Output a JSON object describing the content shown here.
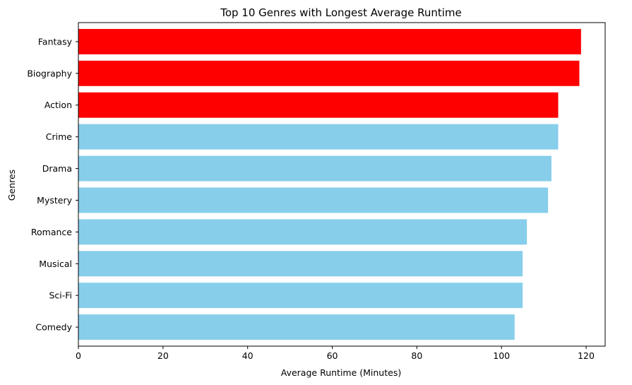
{
  "chart_data": {
    "type": "bar",
    "orientation": "horizontal",
    "title": "Top 10 Genres with Longest Average Runtime",
    "xlabel": "Average Runtime (Minutes)",
    "ylabel": "Genres",
    "categories": [
      "Fantasy",
      "Biography",
      "Action",
      "Crime",
      "Drama",
      "Mystery",
      "Romance",
      "Musical",
      "Sci-Fi",
      "Comedy"
    ],
    "values": [
      118.8,
      118.4,
      113.4,
      113.4,
      111.8,
      111.0,
      106.0,
      105.0,
      105.0,
      103.1
    ],
    "bar_colors": [
      "#ff0000",
      "#ff0000",
      "#ff0000",
      "#87ceeb",
      "#87ceeb",
      "#87ceeb",
      "#87ceeb",
      "#87ceeb",
      "#87ceeb",
      "#87ceeb"
    ],
    "xlim": [
      0,
      124.5
    ],
    "xticks": [
      0,
      20,
      40,
      60,
      80,
      100,
      120
    ],
    "grid": false,
    "legend": "none"
  }
}
